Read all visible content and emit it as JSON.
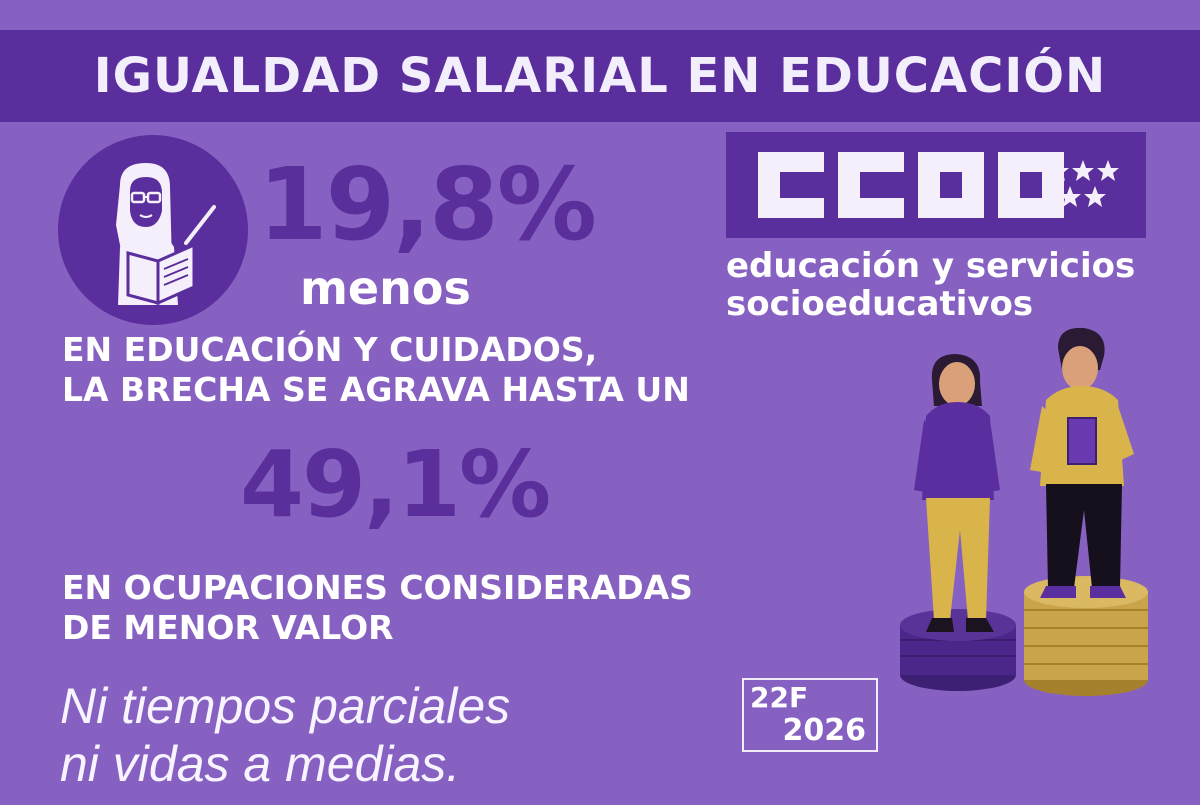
{
  "header": {
    "title": "IGUALDAD SALARIAL EN EDUCACIÓN"
  },
  "stats": {
    "main_value": "19,8%",
    "main_label": "menos",
    "second_value": "49,1%"
  },
  "texts": {
    "line1": "EN EDUCACIÓN Y CUIDADOS,",
    "line2": "LA BRECHA SE AGRAVA HASTA UN",
    "line3": "EN OCUPACIONES CONSIDERADAS",
    "line4": "DE MENOR VALOR"
  },
  "slogan": {
    "line1": "Ni tiempos parciales",
    "line2": "ni vidas a medias."
  },
  "organization": {
    "logo_text": "CCOO",
    "name_line1": "educación y servicios",
    "name_line2": "socioeducativos"
  },
  "date": {
    "line1": "22F",
    "line2": "2026"
  },
  "icons": {
    "teacher": "teacher-reading-icon",
    "stars": "stars-icon",
    "illustration": "people-on-coins-illustration"
  },
  "colors": {
    "background": "#8661c2",
    "banner": "#5a2e9c",
    "accent_text": "#5b2f9b",
    "gold": "#c9a44a",
    "coin_purple": "#4a2788"
  }
}
